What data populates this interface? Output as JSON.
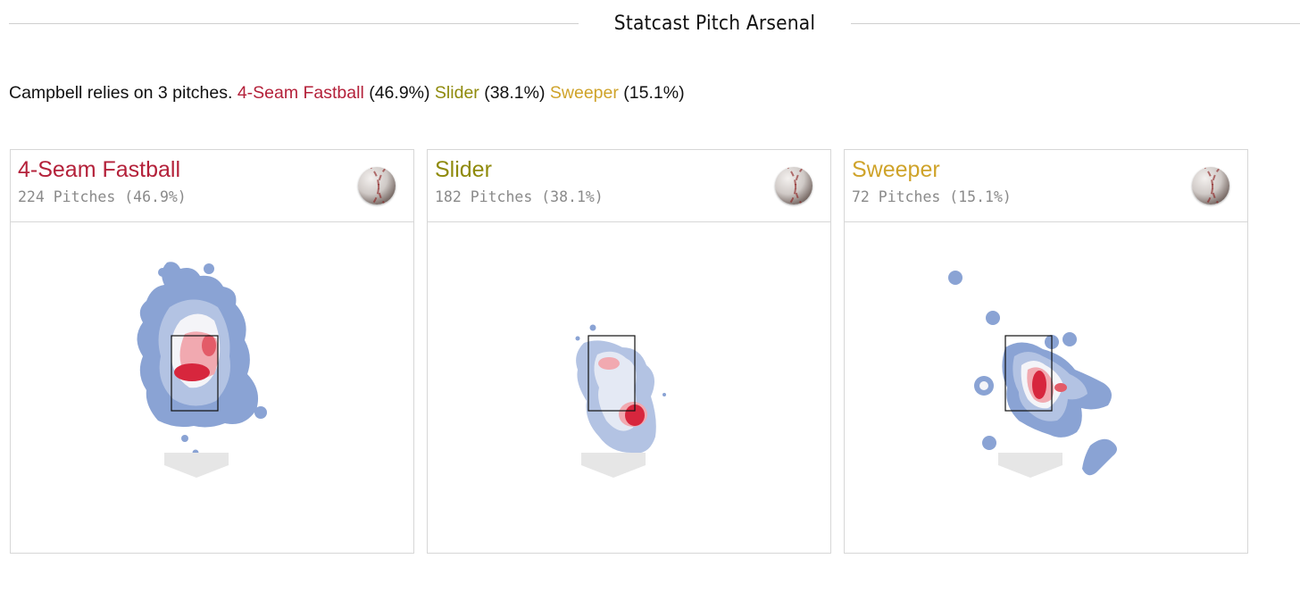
{
  "header": {
    "title": "Statcast Pitch Arsenal"
  },
  "summary": {
    "intro": "Campbell relies on 3 pitches.",
    "pitches": [
      {
        "name": "4-Seam Fastball",
        "pct": "(46.9%)"
      },
      {
        "name": "Slider",
        "pct": "(38.1%)"
      },
      {
        "name": "Sweeper",
        "pct": "(15.1%)"
      }
    ]
  },
  "colors": {
    "fastball": "#b4213a",
    "slider": "#8f8a0b",
    "sweeper": "#cfa32a",
    "heat_low": "#7d98cf",
    "heat_high": "#d7263d"
  },
  "cards": [
    {
      "name": "4-Seam Fastball",
      "count": "224 Pitches (46.9%)",
      "icon": "baseball-icon"
    },
    {
      "name": "Slider",
      "count": "182 Pitches (38.1%)",
      "icon": "baseball-icon"
    },
    {
      "name": "Sweeper",
      "count": "72 Pitches (15.1%)",
      "icon": "baseball-icon"
    }
  ]
}
